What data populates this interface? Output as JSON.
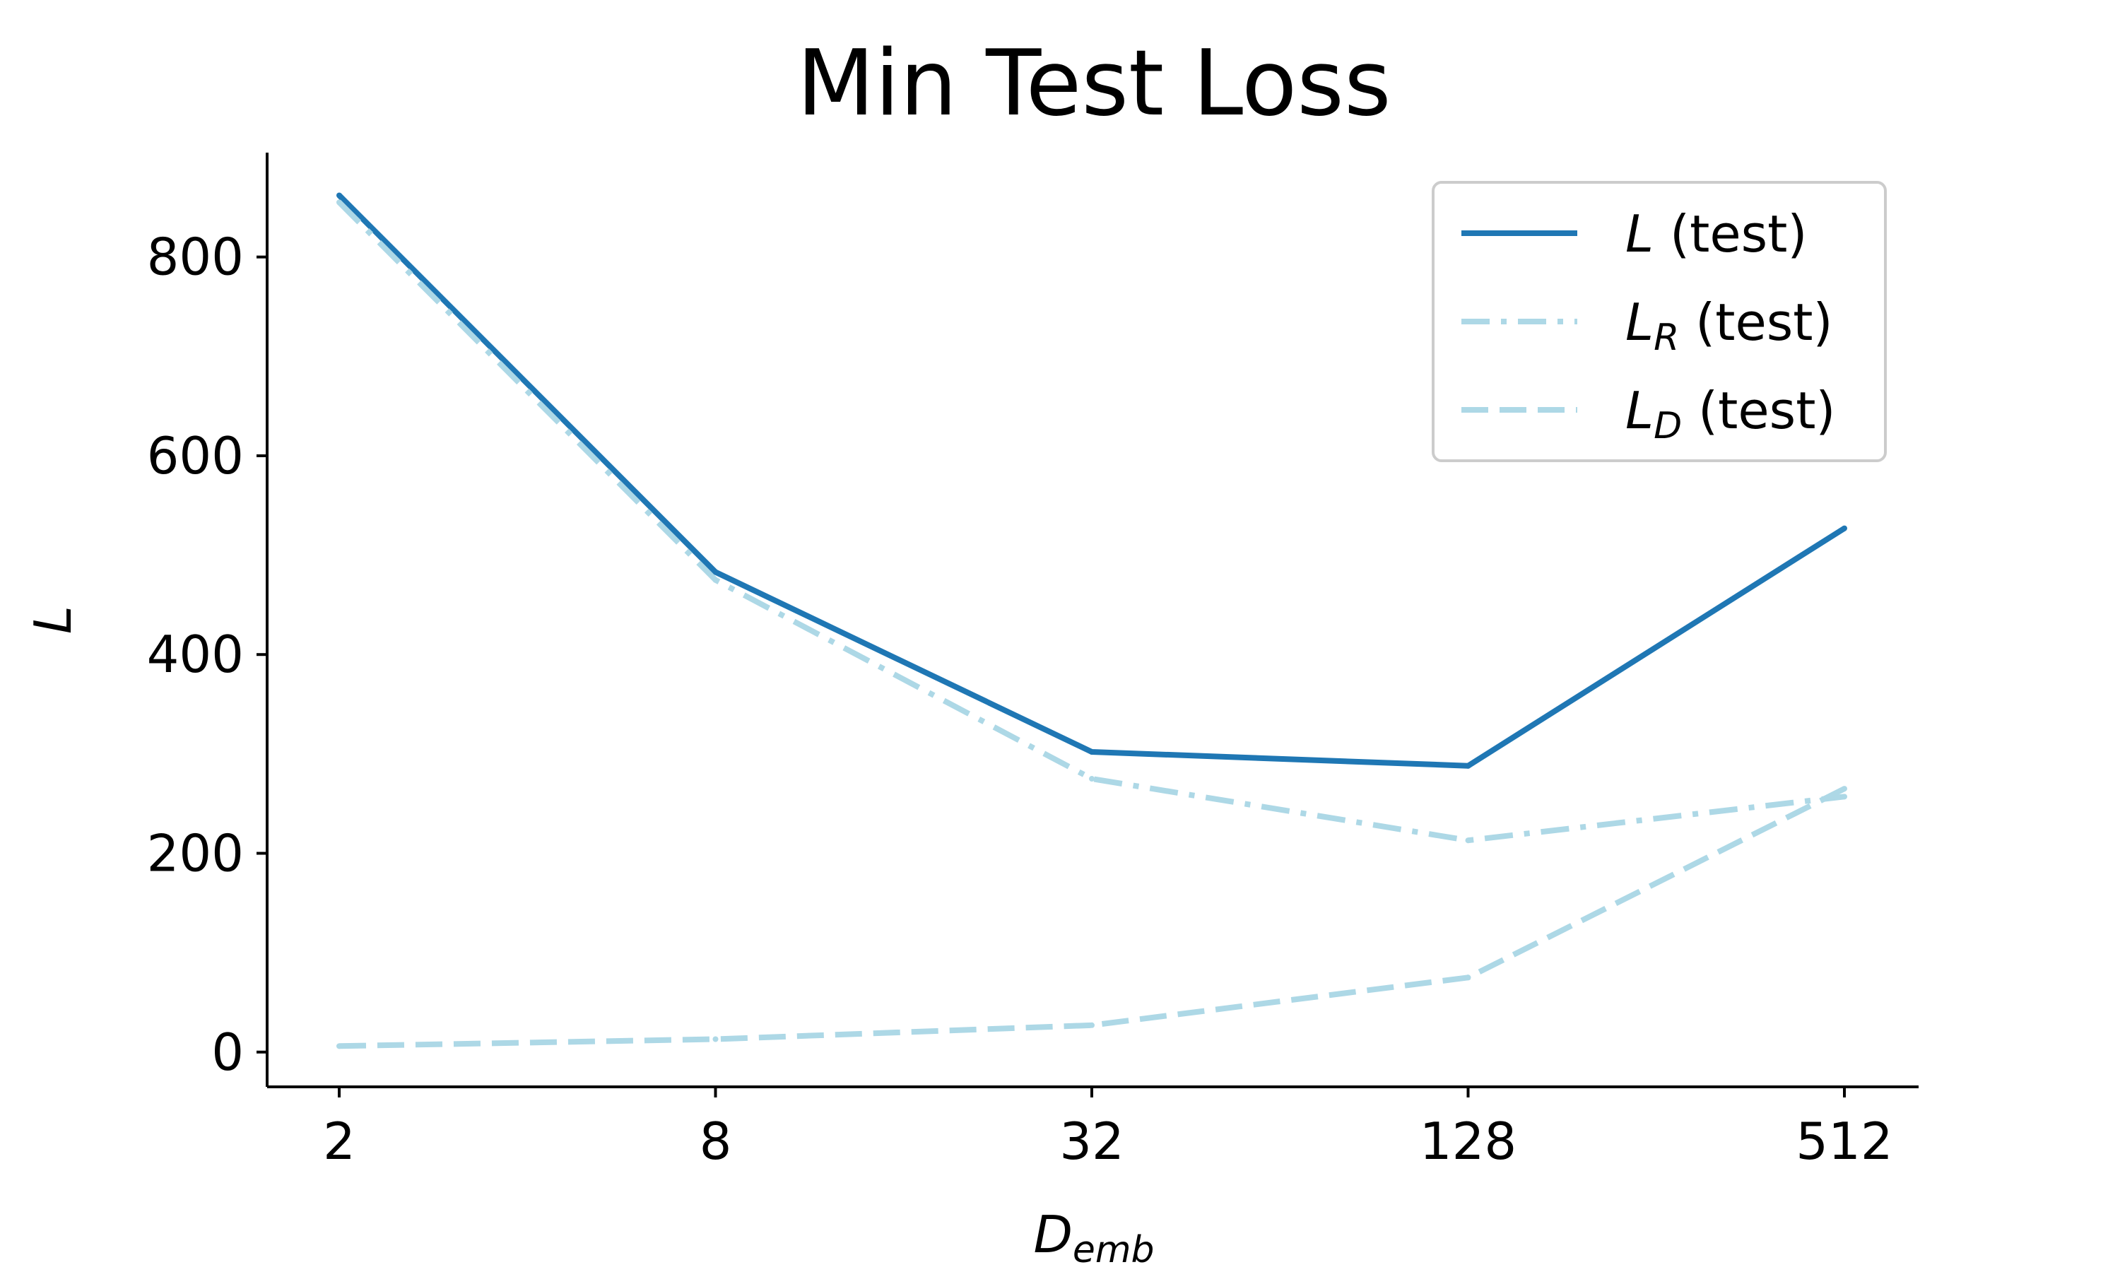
{
  "chart_data": {
    "type": "line",
    "title": "Min Test Loss",
    "xlabel": {
      "main": "D",
      "sub": "emb"
    },
    "ylabel": "L",
    "x": [
      2,
      8,
      32,
      128,
      512
    ],
    "x_tick_labels": [
      "2",
      "8",
      "32",
      "128",
      "512"
    ],
    "x_scale": "log2",
    "y_ticks": [
      0,
      200,
      400,
      600,
      800
    ],
    "ylim": [
      -35,
      905
    ],
    "grid": false,
    "legend_position": "top-right",
    "series": [
      {
        "key": "L",
        "name": {
          "main": "L",
          "sub": "",
          "suffix": " (test)"
        },
        "values": [
          862,
          483,
          302,
          288,
          527
        ],
        "color": "#1f77b4",
        "style": "solid"
      },
      {
        "key": "LR",
        "name": {
          "main": "L",
          "sub": "R",
          "suffix": " (test)"
        },
        "values": [
          855,
          475,
          275,
          213,
          257
        ],
        "color": "#add8e6",
        "style": "dashdot"
      },
      {
        "key": "LD",
        "name": {
          "main": "L",
          "sub": "D",
          "suffix": " (test)"
        },
        "values": [
          6,
          13,
          27,
          75,
          265
        ],
        "color": "#add8e6",
        "style": "dashed"
      }
    ]
  }
}
